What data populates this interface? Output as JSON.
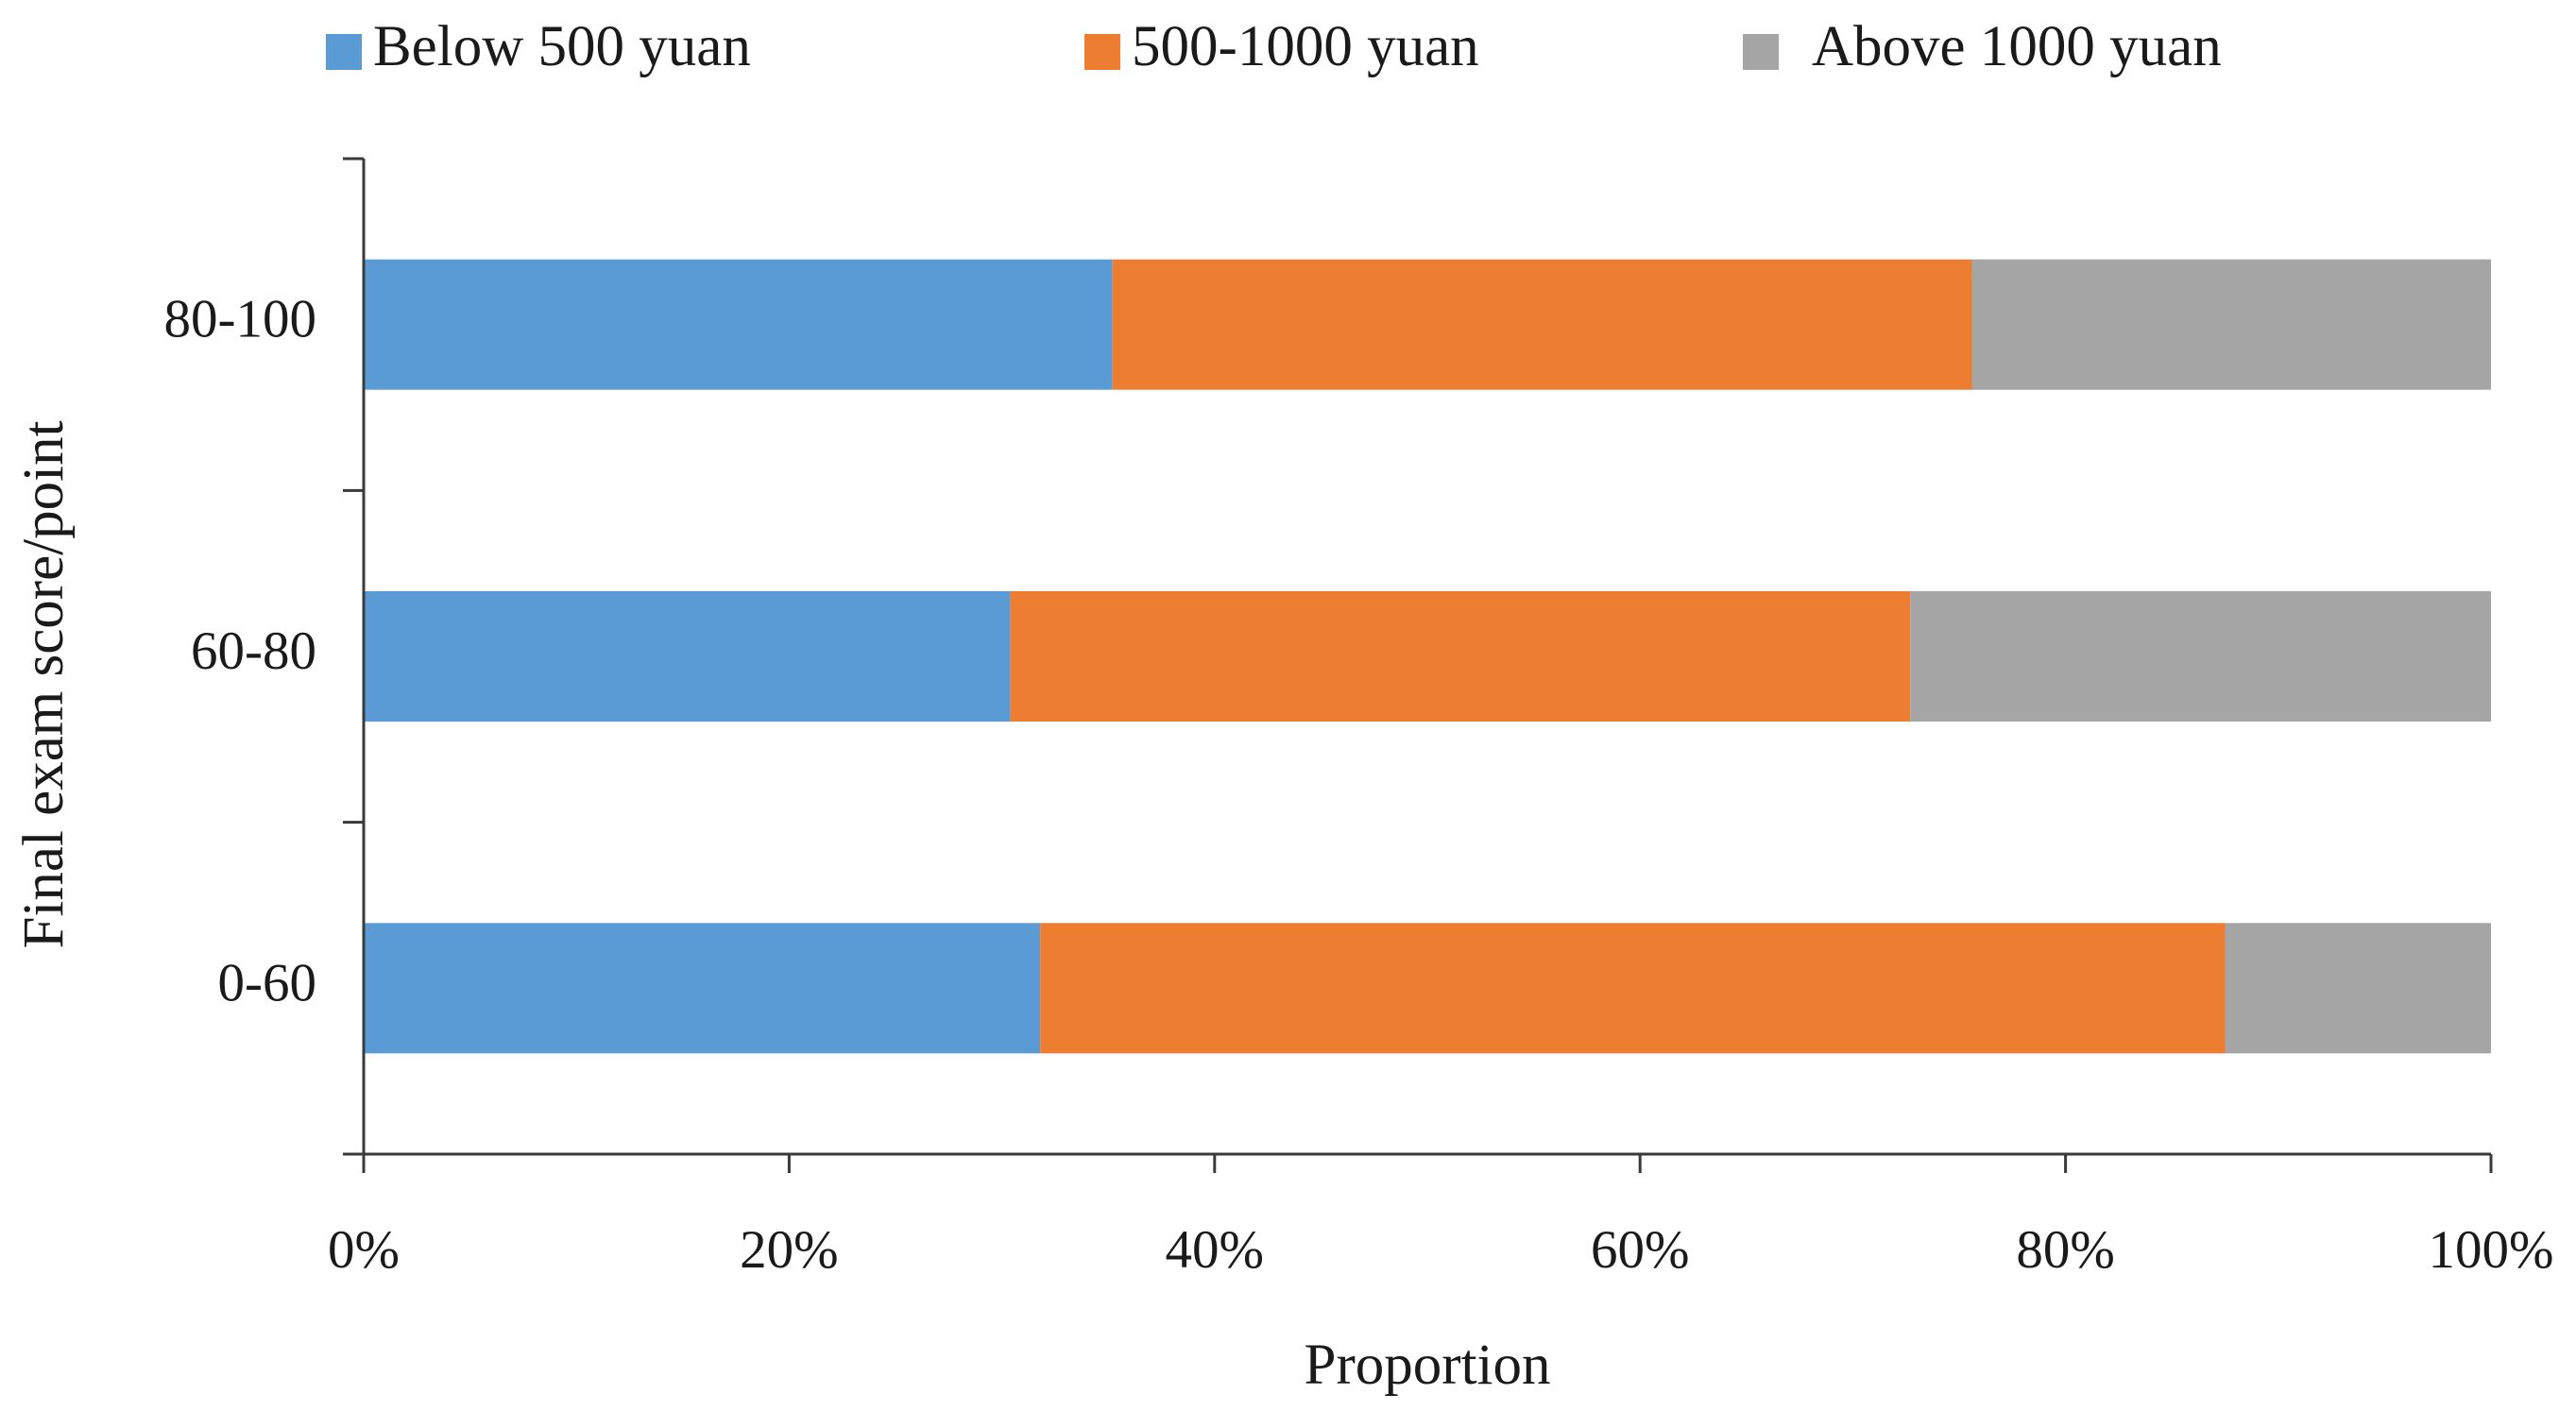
{
  "chart_data": {
    "type": "bar",
    "orientation": "horizontal",
    "stacked": true,
    "normalized": true,
    "categories": [
      "0-60",
      "60-80",
      "80-100"
    ],
    "series": [
      {
        "name": "Below 500 yuan",
        "color": "#5B9BD5",
        "values": [
          31.8,
          30.4,
          35.2
        ]
      },
      {
        "name": "500-1000 yuan",
        "color": "#ED7D31",
        "values": [
          55.7,
          42.3,
          40.4
        ]
      },
      {
        "name": "Above 1000 yuan",
        "color": "#A5A5A5",
        "values": [
          12.5,
          27.3,
          24.4
        ]
      }
    ],
    "xlabel": "Proportion",
    "ylabel": "Final exam score/point",
    "xlim": [
      0,
      100
    ],
    "x_ticks": [
      "0%",
      "20%",
      "40%",
      "60%",
      "80%",
      "100%"
    ],
    "grid": false,
    "legend_position": "top"
  }
}
